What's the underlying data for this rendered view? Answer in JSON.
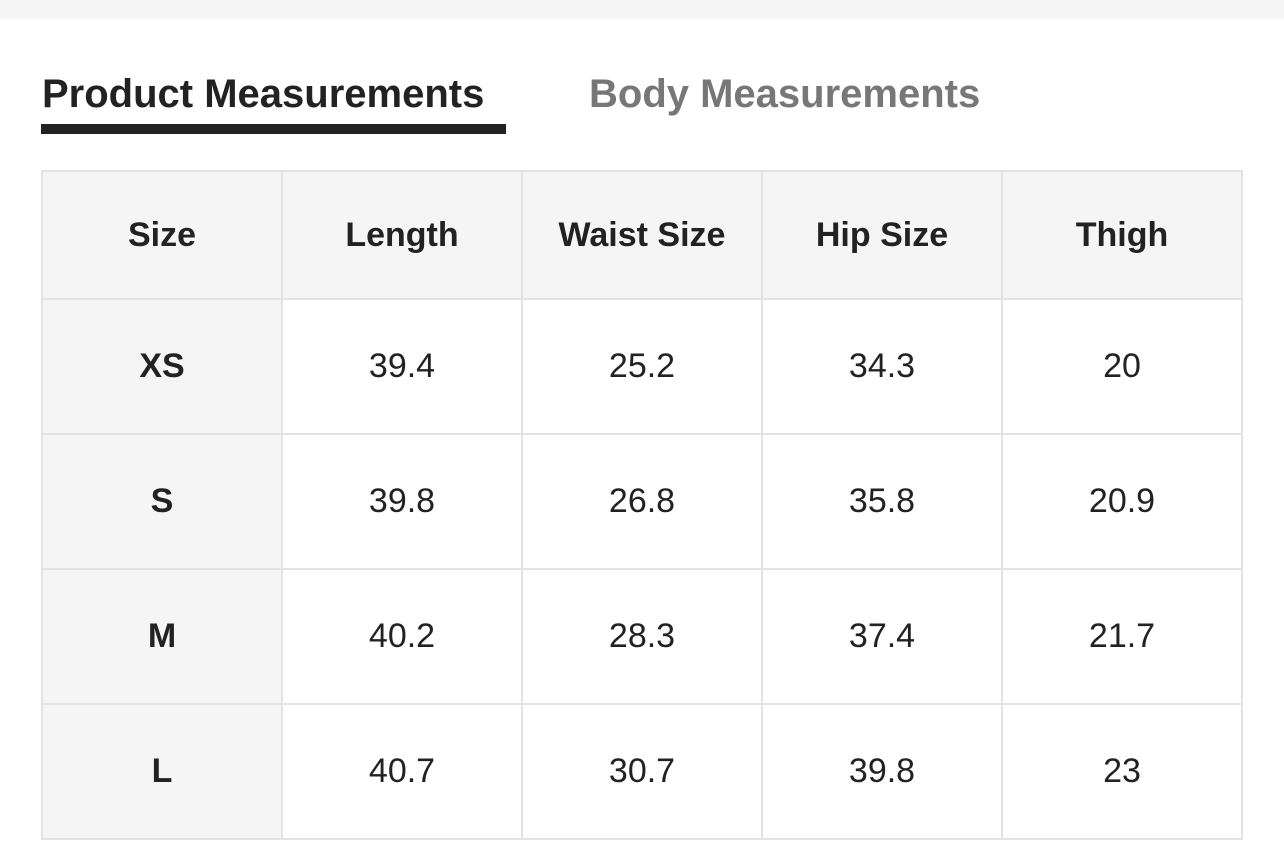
{
  "tabs": [
    {
      "label": "Product Measurements",
      "active": true
    },
    {
      "label": "Body Measurements",
      "active": false
    }
  ],
  "table": {
    "headers": [
      "Size",
      "Length",
      "Waist Size",
      "Hip Size",
      "Thigh"
    ],
    "rows": [
      [
        "XS",
        "39.4",
        "25.2",
        "34.3",
        "20"
      ],
      [
        "S",
        "39.8",
        "26.8",
        "35.8",
        "20.9"
      ],
      [
        "M",
        "40.2",
        "28.3",
        "37.4",
        "21.7"
      ],
      [
        "L",
        "40.7",
        "30.7",
        "39.8",
        "23"
      ]
    ]
  }
}
